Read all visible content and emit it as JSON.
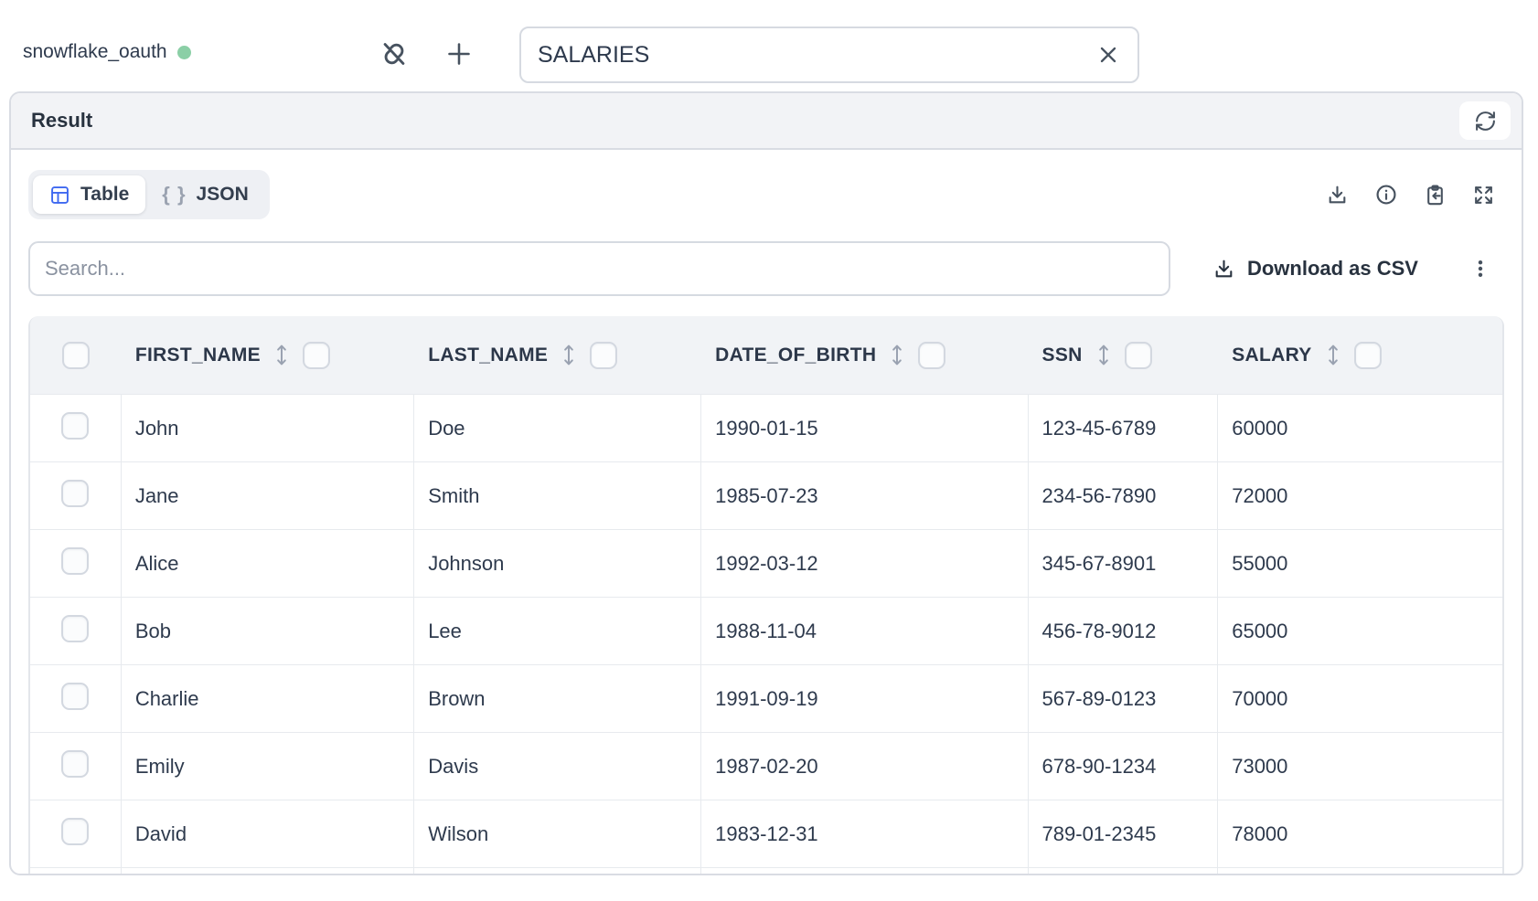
{
  "topbar": {
    "connection_name": "snowflake_oauth",
    "query_value": "SALARIES"
  },
  "result_panel": {
    "title": "Result"
  },
  "view_tabs": {
    "table_label": "Table",
    "json_label": "JSON",
    "json_braces": "{ }",
    "active_tab": "Table"
  },
  "toolbar": {
    "search_placeholder": "Search...",
    "download_csv_label": "Download as CSV"
  },
  "icons": {
    "topbar": [
      "unlink-icon",
      "plus-icon",
      "clear-icon"
    ],
    "panel": [
      "refresh-icon"
    ],
    "result_toolbar": [
      "download-icon",
      "info-icon",
      "paste-icon",
      "expand-icon",
      "csv-download-icon",
      "kebab-menu-icon"
    ],
    "table": [
      "table-view-icon",
      "json-braces-icon",
      "sort-icon",
      "checkbox"
    ]
  },
  "colors": {
    "status_green": "#8bcfa6",
    "table_icon_blue": "#3e68f0",
    "icon_slate": "#47525f"
  },
  "table": {
    "columns": [
      "FIRST_NAME",
      "LAST_NAME",
      "DATE_OF_BIRTH",
      "SSN",
      "SALARY"
    ],
    "rows": [
      [
        "John",
        "Doe",
        "1990-01-15",
        "123-45-6789",
        "60000"
      ],
      [
        "Jane",
        "Smith",
        "1985-07-23",
        "234-56-7890",
        "72000"
      ],
      [
        "Alice",
        "Johnson",
        "1992-03-12",
        "345-67-8901",
        "55000"
      ],
      [
        "Bob",
        "Lee",
        "1988-11-04",
        "456-78-9012",
        "65000"
      ],
      [
        "Charlie",
        "Brown",
        "1991-09-19",
        "567-89-0123",
        "70000"
      ],
      [
        "Emily",
        "Davis",
        "1987-02-20",
        "678-90-1234",
        "73000"
      ],
      [
        "David",
        "Wilson",
        "1983-12-31",
        "789-01-2345",
        "78000"
      ]
    ]
  }
}
